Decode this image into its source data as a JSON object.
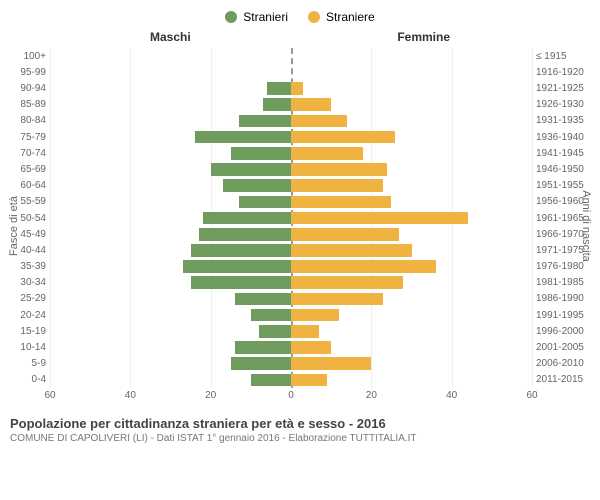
{
  "chart": {
    "type": "population-pyramid",
    "legend": [
      {
        "label": "Stranieri",
        "color": "#6f9b5e"
      },
      {
        "label": "Straniere",
        "color": "#f0b342"
      }
    ],
    "column_titles": {
      "left": "Maschi",
      "right": "Femmine"
    },
    "y_axis_label_left": "Fasce di età",
    "y_axis_label_right": "Anni di nascita",
    "x_axis": {
      "max": 60,
      "ticks": [
        60,
        40,
        20,
        0,
        20,
        40,
        60
      ]
    },
    "colors": {
      "male": "#6f9b5e",
      "female": "#f0b342",
      "grid": "#eeeeee",
      "centerline": "#999999",
      "text": "#666666",
      "title_text": "#444444",
      "background": "#ffffff"
    },
    "title_fontsize": 13,
    "sub_fontsize": 10,
    "label_fontsize": 10,
    "legend_fontsize": 12,
    "bar_height_pct": 78,
    "rows": [
      {
        "age": "0-4",
        "birth": "2011-2015",
        "m": 10,
        "f": 9
      },
      {
        "age": "5-9",
        "birth": "2006-2010",
        "m": 15,
        "f": 20
      },
      {
        "age": "10-14",
        "birth": "2001-2005",
        "m": 14,
        "f": 10
      },
      {
        "age": "15-19",
        "birth": "1996-2000",
        "m": 8,
        "f": 7
      },
      {
        "age": "20-24",
        "birth": "1991-1995",
        "m": 10,
        "f": 12
      },
      {
        "age": "25-29",
        "birth": "1986-1990",
        "m": 14,
        "f": 23
      },
      {
        "age": "30-34",
        "birth": "1981-1985",
        "m": 25,
        "f": 28
      },
      {
        "age": "35-39",
        "birth": "1976-1980",
        "m": 27,
        "f": 36
      },
      {
        "age": "40-44",
        "birth": "1971-1975",
        "m": 25,
        "f": 30
      },
      {
        "age": "45-49",
        "birth": "1966-1970",
        "m": 23,
        "f": 27
      },
      {
        "age": "50-54",
        "birth": "1961-1965",
        "m": 22,
        "f": 44
      },
      {
        "age": "55-59",
        "birth": "1956-1960",
        "m": 13,
        "f": 25
      },
      {
        "age": "60-64",
        "birth": "1951-1955",
        "m": 17,
        "f": 23
      },
      {
        "age": "65-69",
        "birth": "1946-1950",
        "m": 20,
        "f": 24
      },
      {
        "age": "70-74",
        "birth": "1941-1945",
        "m": 15,
        "f": 18
      },
      {
        "age": "75-79",
        "birth": "1936-1940",
        "m": 24,
        "f": 26
      },
      {
        "age": "80-84",
        "birth": "1931-1935",
        "m": 13,
        "f": 14
      },
      {
        "age": "85-89",
        "birth": "1926-1930",
        "m": 7,
        "f": 10
      },
      {
        "age": "90-94",
        "birth": "1921-1925",
        "m": 6,
        "f": 3
      },
      {
        "age": "95-99",
        "birth": "1916-1920",
        "m": 0,
        "f": 0
      },
      {
        "age": "100+",
        "birth": "≤ 1915",
        "m": 0,
        "f": 0
      }
    ]
  },
  "caption": {
    "title": "Popolazione per cittadinanza straniera per età e sesso - 2016",
    "sub": "COMUNE DI CAPOLIVERI (LI) - Dati ISTAT 1° gennaio 2016 - Elaborazione TUTTITALIA.IT"
  }
}
